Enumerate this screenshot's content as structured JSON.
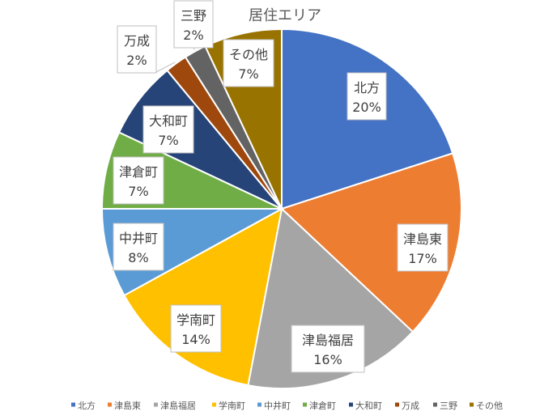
{
  "chart_data": {
    "type": "pie",
    "title": "居住エリア",
    "categories": [
      "北方",
      "津島東",
      "津島福居",
      "学南町",
      "中井町",
      "津倉町",
      "大和町",
      "万成",
      "三野",
      "その他"
    ],
    "values": [
      20,
      17,
      16,
      14,
      8,
      7,
      7,
      2,
      2,
      7
    ],
    "value_labels": [
      "20%",
      "17%",
      "16%",
      "14%",
      "8%",
      "7%",
      "7%",
      "2%",
      "2%",
      "7%"
    ],
    "colors": [
      "#4472C4",
      "#ED7D31",
      "#A5A5A5",
      "#FFC000",
      "#5B9BD5",
      "#70AD47",
      "#264478",
      "#9E480E",
      "#636363",
      "#997300"
    ],
    "legend_position": "bottom",
    "start_angle": "12 o'clock, clockwise"
  }
}
